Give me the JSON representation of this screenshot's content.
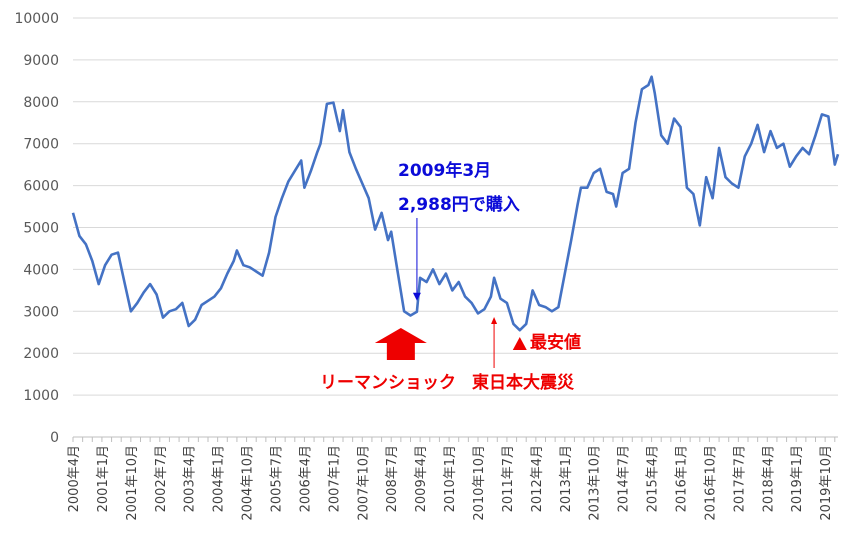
{
  "chart_data": {
    "type": "line",
    "title": "",
    "xlabel": "",
    "ylabel": "",
    "ylim": [
      0,
      10000
    ],
    "y_ticks": [
      "0",
      "1000",
      "2000",
      "3000",
      "4000",
      "5000",
      "6000",
      "7000",
      "8000",
      "9000",
      "10000"
    ],
    "x_tick_labels": [
      "2000年4月",
      "2001年1月",
      "2001年10月",
      "2002年7月",
      "2003年4月",
      "2004年1月",
      "2004年10月",
      "2005年7月",
      "2006年4月",
      "2007年1月",
      "2007年10月",
      "2008年7月",
      "2009年4月",
      "2010年1月",
      "2010年10月",
      "2011年7月",
      "2012年4月",
      "2013年1月",
      "2013年10月",
      "2014年7月",
      "2015年4月",
      "2016年1月",
      "2016年10月",
      "2017年7月",
      "2018年4月",
      "2019年1月",
      "2019年10月"
    ],
    "grid": true,
    "legend": "none",
    "series_color": "#4472c4",
    "x_start": "2000-04",
    "x_end": "2020-02",
    "keypoints": [
      [
        "2000-04",
        5350
      ],
      [
        "2000-06",
        4800
      ],
      [
        "2000-08",
        4600
      ],
      [
        "2000-10",
        4200
      ],
      [
        "2000-12",
        3650
      ],
      [
        "2001-02",
        4100
      ],
      [
        "2001-04",
        4350
      ],
      [
        "2001-06",
        4400
      ],
      [
        "2001-08",
        3700
      ],
      [
        "2001-10",
        3000
      ],
      [
        "2001-12",
        3200
      ],
      [
        "2002-02",
        3450
      ],
      [
        "2002-04",
        3650
      ],
      [
        "2002-06",
        3400
      ],
      [
        "2002-08",
        2850
      ],
      [
        "2002-10",
        3000
      ],
      [
        "2002-12",
        3050
      ],
      [
        "2003-02",
        3200
      ],
      [
        "2003-04",
        2650
      ],
      [
        "2003-06",
        2800
      ],
      [
        "2003-08",
        3150
      ],
      [
        "2003-10",
        3250
      ],
      [
        "2003-12",
        3350
      ],
      [
        "2004-02",
        3550
      ],
      [
        "2004-04",
        3900
      ],
      [
        "2004-06",
        4200
      ],
      [
        "2004-07",
        4450
      ],
      [
        "2004-09",
        4100
      ],
      [
        "2004-11",
        4050
      ],
      [
        "2005-01",
        3950
      ],
      [
        "2005-03",
        3850
      ],
      [
        "2005-05",
        4400
      ],
      [
        "2005-07",
        5250
      ],
      [
        "2005-09",
        5700
      ],
      [
        "2005-11",
        6100
      ],
      [
        "2006-01",
        6350
      ],
      [
        "2006-03",
        6600
      ],
      [
        "2006-04",
        5950
      ],
      [
        "2006-06",
        6350
      ],
      [
        "2006-08",
        6800
      ],
      [
        "2006-09",
        7000
      ],
      [
        "2006-11",
        7950
      ],
      [
        "2007-01",
        7980
      ],
      [
        "2007-03",
        7300
      ],
      [
        "2007-04",
        7800
      ],
      [
        "2007-06",
        6800
      ],
      [
        "2007-08",
        6400
      ],
      [
        "2007-10",
        6050
      ],
      [
        "2007-12",
        5700
      ],
      [
        "2008-02",
        4950
      ],
      [
        "2008-04",
        5350
      ],
      [
        "2008-06",
        4700
      ],
      [
        "2008-07",
        4900
      ],
      [
        "2008-09",
        3950
      ],
      [
        "2008-11",
        3000
      ],
      [
        "2009-01",
        2900
      ],
      [
        "2009-03",
        2988
      ],
      [
        "2009-04",
        3800
      ],
      [
        "2009-06",
        3700
      ],
      [
        "2009-08",
        4000
      ],
      [
        "2009-10",
        3650
      ],
      [
        "2009-12",
        3900
      ],
      [
        "2010-02",
        3500
      ],
      [
        "2010-04",
        3700
      ],
      [
        "2010-06",
        3350
      ],
      [
        "2010-08",
        3200
      ],
      [
        "2010-10",
        2950
      ],
      [
        "2010-12",
        3050
      ],
      [
        "2011-02",
        3350
      ],
      [
        "2011-03",
        3800
      ],
      [
        "2011-05",
        3300
      ],
      [
        "2011-07",
        3200
      ],
      [
        "2011-09",
        2700
      ],
      [
        "2011-11",
        2550
      ],
      [
        "2012-01",
        2700
      ],
      [
        "2012-03",
        3500
      ],
      [
        "2012-05",
        3150
      ],
      [
        "2012-07",
        3100
      ],
      [
        "2012-09",
        3000
      ],
      [
        "2012-11",
        3100
      ],
      [
        "2013-01",
        3900
      ],
      [
        "2013-03",
        4700
      ],
      [
        "2013-05",
        5550
      ],
      [
        "2013-06",
        5950
      ],
      [
        "2013-08",
        5950
      ],
      [
        "2013-10",
        6300
      ],
      [
        "2013-12",
        6400
      ],
      [
        "2014-02",
        5850
      ],
      [
        "2014-04",
        5800
      ],
      [
        "2014-05",
        5500
      ],
      [
        "2014-07",
        6300
      ],
      [
        "2014-09",
        6400
      ],
      [
        "2014-11",
        7500
      ],
      [
        "2015-01",
        8300
      ],
      [
        "2015-03",
        8400
      ],
      [
        "2015-04",
        8600
      ],
      [
        "2015-05",
        8200
      ],
      [
        "2015-07",
        7200
      ],
      [
        "2015-09",
        7000
      ],
      [
        "2015-11",
        7600
      ],
      [
        "2016-01",
        7400
      ],
      [
        "2016-03",
        5950
      ],
      [
        "2016-05",
        5800
      ],
      [
        "2016-07",
        5050
      ],
      [
        "2016-09",
        6200
      ],
      [
        "2016-11",
        5700
      ],
      [
        "2017-01",
        6900
      ],
      [
        "2017-03",
        6200
      ],
      [
        "2017-05",
        6050
      ],
      [
        "2017-07",
        5950
      ],
      [
        "2017-09",
        6700
      ],
      [
        "2017-11",
        7000
      ],
      [
        "2018-01",
        7450
      ],
      [
        "2018-03",
        6800
      ],
      [
        "2018-05",
        7300
      ],
      [
        "2018-07",
        6900
      ],
      [
        "2018-09",
        7000
      ],
      [
        "2018-11",
        6450
      ],
      [
        "2019-01",
        6700
      ],
      [
        "2019-03",
        6900
      ],
      [
        "2019-05",
        6750
      ],
      [
        "2019-07",
        7200
      ],
      [
        "2019-09",
        7700
      ],
      [
        "2019-11",
        7650
      ],
      [
        "2020-01",
        6500
      ],
      [
        "2020-02",
        6750
      ]
    ],
    "annotations": {
      "buy_line1": "2009年3月",
      "buy_line2": "2,988円で購入",
      "lehman": "リーマンショック",
      "earthquake": "東日本大震災",
      "lowest": "最安値"
    },
    "annotation_colors": {
      "blue": "#0b0bd8",
      "red": "#ee0000"
    }
  }
}
